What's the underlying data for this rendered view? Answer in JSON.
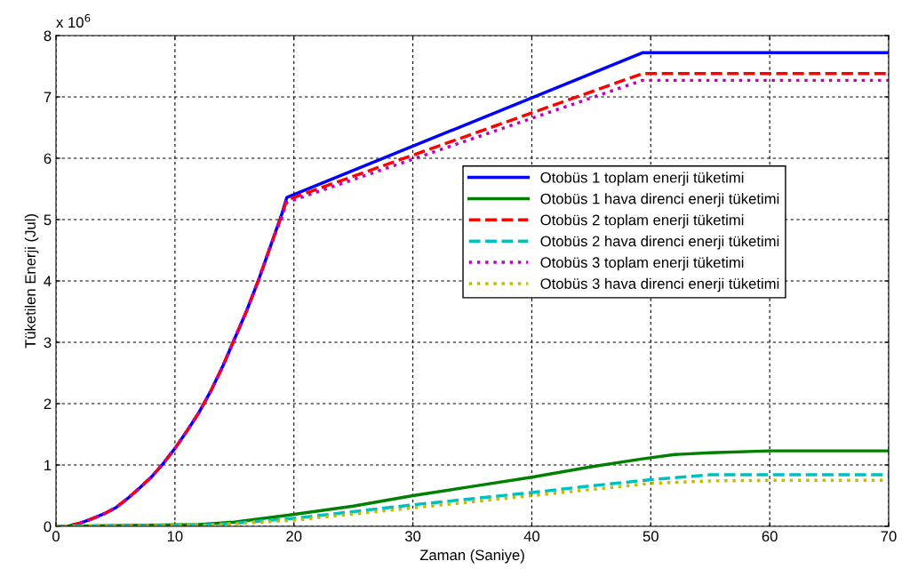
{
  "chart_data": {
    "type": "line",
    "xlabel": "Zaman (Saniye)",
    "ylabel": "Tüketilen Enerji (Jul)",
    "annotations": [
      "x 10$^{6}$"
    ],
    "xlim": [
      0,
      70
    ],
    "ylim": [
      0,
      8
    ],
    "xticks": [
      0,
      10,
      20,
      30,
      40,
      50,
      60,
      70
    ],
    "yticks": [
      0,
      1,
      2,
      3,
      4,
      5,
      6,
      7,
      8
    ],
    "grid": true,
    "legend": "right",
    "marker": "none",
    "series": [
      {
        "name": "Otobüs 1 toplam enerji tüketimi",
        "color": "#0000ff",
        "line_style": "solid",
        "x": [
          0,
          1,
          2,
          3,
          4,
          5,
          6,
          7,
          8,
          9,
          10,
          11,
          12,
          13,
          14,
          15,
          16,
          17,
          18,
          19,
          19.4,
          49.3,
          70
        ],
        "values": [
          0,
          0,
          0.05,
          0.12,
          0.2,
          0.3,
          0.45,
          0.62,
          0.8,
          1.02,
          1.27,
          1.55,
          1.85,
          2.2,
          2.6,
          3.05,
          3.5,
          4.0,
          4.55,
          5.1,
          5.36,
          7.72,
          7.72
        ]
      },
      {
        "name": "Otobüs 1 hava direnci enerji tüketimi",
        "color": "#008000",
        "line_style": "solid",
        "x": [
          0,
          12,
          15,
          19.5,
          25,
          30,
          35,
          40,
          45,
          49.3,
          52,
          55,
          60,
          70
        ],
        "values": [
          0,
          0.03,
          0.07,
          0.18,
          0.33,
          0.5,
          0.65,
          0.8,
          0.97,
          1.1,
          1.17,
          1.2,
          1.23,
          1.23
        ]
      },
      {
        "name": "Otobüs 2 toplam enerji tüketimi",
        "color": "#ff0000",
        "line_style": "dashed",
        "x": [
          0,
          1,
          2,
          3,
          4,
          5,
          6,
          7,
          8,
          9,
          10,
          11,
          12,
          13,
          14,
          15,
          16,
          17,
          18,
          19,
          19.4,
          49.3,
          70
        ],
        "values": [
          0,
          0,
          0.05,
          0.12,
          0.2,
          0.3,
          0.45,
          0.62,
          0.8,
          1.02,
          1.27,
          1.55,
          1.85,
          2.2,
          2.6,
          3.05,
          3.5,
          4.0,
          4.55,
          5.08,
          5.32,
          7.38,
          7.38
        ]
      },
      {
        "name": "Otobüs 2 hava direnci enerji tüketimi",
        "color": "#00bfbf",
        "line_style": "dashed",
        "x": [
          0,
          12,
          15,
          20,
          25,
          30,
          35,
          40,
          45,
          50,
          55,
          70
        ],
        "values": [
          0,
          0.02,
          0.05,
          0.13,
          0.24,
          0.35,
          0.45,
          0.55,
          0.66,
          0.76,
          0.84,
          0.84
        ]
      },
      {
        "name": "Otobüs 3 toplam enerji tüketimi",
        "color": "#bf00bf",
        "line_style": "dotted",
        "x": [
          0,
          1,
          2,
          3,
          4,
          5,
          6,
          7,
          8,
          9,
          10,
          11,
          12,
          13,
          14,
          15,
          16,
          17,
          18,
          19,
          19.4,
          49.3,
          70
        ],
        "values": [
          0,
          0,
          0.05,
          0.12,
          0.2,
          0.3,
          0.45,
          0.62,
          0.8,
          1.02,
          1.27,
          1.55,
          1.85,
          2.2,
          2.6,
          3.05,
          3.5,
          4.0,
          4.55,
          5.05,
          5.28,
          7.27,
          7.27
        ]
      },
      {
        "name": "Otobüs 3 hava direnci enerji tüketimi",
        "color": "#bfbf00",
        "line_style": "dotted",
        "x": [
          0,
          12,
          15,
          20,
          25,
          30,
          35,
          40,
          45,
          50,
          55,
          60,
          70
        ],
        "values": [
          0,
          0.01,
          0.04,
          0.1,
          0.2,
          0.3,
          0.4,
          0.5,
          0.6,
          0.7,
          0.74,
          0.75,
          0.75
        ]
      }
    ]
  }
}
